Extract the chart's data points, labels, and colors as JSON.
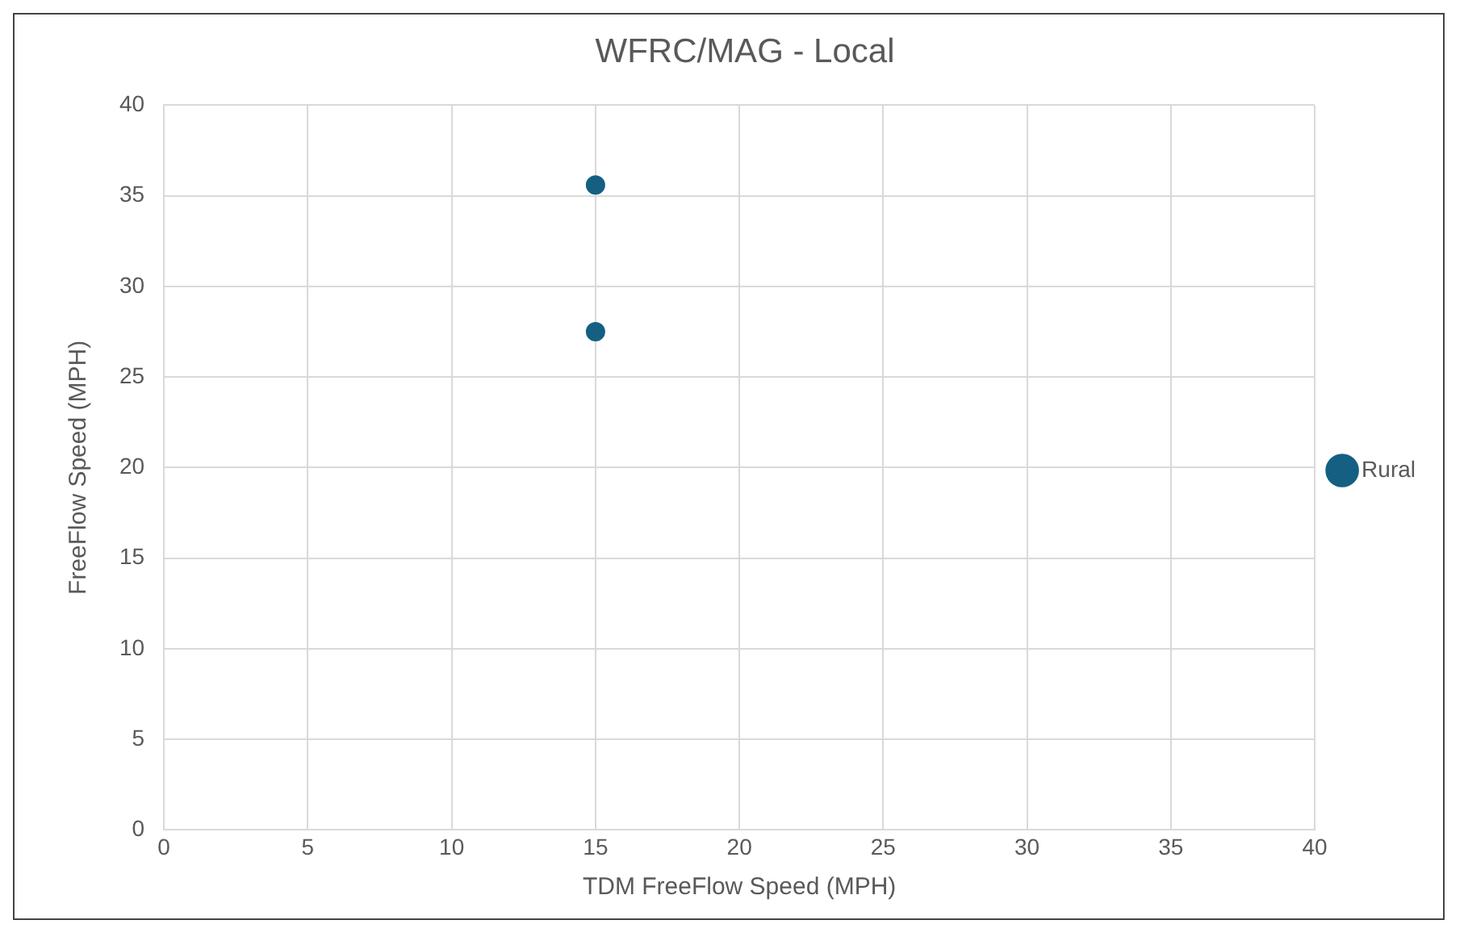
{
  "chart_data": {
    "type": "scatter",
    "title": "WFRC/MAG - Local",
    "xlabel": "TDM FreeFlow Speed (MPH)",
    "ylabel": "FreeFlow Speed (MPH)",
    "series": [
      {
        "name": "Rural",
        "color": "#156082",
        "x": [
          15,
          15
        ],
        "values": [
          35.6,
          27.5
        ]
      }
    ],
    "xlim": [
      0,
      40
    ],
    "xticks": [
      0,
      5,
      10,
      15,
      20,
      25,
      30,
      35,
      40
    ],
    "ylim": [
      0,
      40
    ],
    "yticks": [
      0,
      5,
      10,
      15,
      20,
      25,
      30,
      35,
      40
    ],
    "grid": true,
    "legend": "right",
    "marker": "circle"
  }
}
